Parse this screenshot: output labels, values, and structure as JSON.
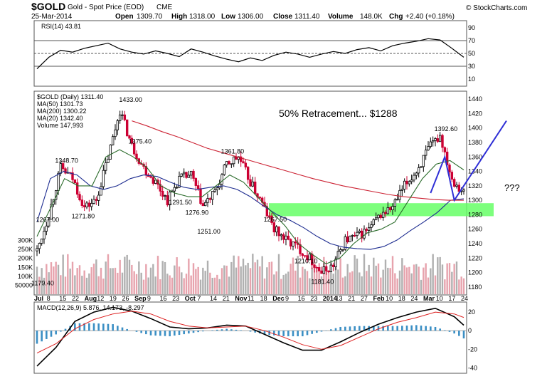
{
  "header": {
    "symbol": "$GOLD",
    "name": "Gold - Spot Price (EOD)",
    "exchange": "CME",
    "date": "25-Mar-2014",
    "open_label": "Open",
    "open": "1309.70",
    "high_label": "High",
    "high": "1318.00",
    "low_label": "Low",
    "low": "1306.00",
    "close_label": "Close",
    "close": "1311.40",
    "volume_label": "Volume",
    "volume": "148.0K",
    "chg_label": "Chg",
    "chg": "+2.40 (+0.18%)",
    "watermark": "© StockCharts.com"
  },
  "colors": {
    "up": "#000000",
    "down": "#cc0033",
    "ma50": "#1c2b8f",
    "ma200": "#cc2233",
    "ma20": "#2a6b2a",
    "band": "#66ff66",
    "annotation": "#2f2fd6",
    "macd_hist": "#3b8fc4"
  },
  "legend": {
    "price": "$GOLD (Daily) 1311.40",
    "ma50": "MA(50) 1301.73",
    "ma200": "MA(200) 1300.22",
    "ma20": "MA(20) 1342.40",
    "volume": "Volume 147,993"
  },
  "annotation": {
    "retracement": "50% Retracement... $1288",
    "question": "???"
  },
  "chart_data": [
    {
      "type": "line",
      "panel": "RSI",
      "title": "RSI(14) 43.81",
      "ylim": [
        0,
        100
      ],
      "y_ticks": [
        "90",
        "70",
        "50",
        "30",
        "10"
      ],
      "reference_lines": [
        70,
        50,
        30
      ],
      "x": [
        0,
        5,
        10,
        15,
        20,
        25,
        30,
        35,
        40,
        45,
        50,
        55,
        60,
        65,
        70,
        75,
        80,
        85,
        90,
        95,
        100,
        105,
        110,
        115,
        120,
        125,
        130,
        135,
        140,
        145,
        150,
        155,
        160,
        165,
        170,
        175,
        180
      ],
      "values": [
        26,
        44,
        55,
        52,
        58,
        62,
        66,
        57,
        52,
        49,
        54,
        50,
        45,
        57,
        52,
        46,
        41,
        37,
        43,
        39,
        47,
        52,
        49,
        44,
        49,
        53,
        50,
        56,
        59,
        54,
        62,
        66,
        69,
        73,
        71,
        58,
        44
      ]
    },
    {
      "type": "candlestick",
      "panel": "Price",
      "title": "$GOLD (Daily) 1311.40",
      "ylim": [
        1170,
        1450
      ],
      "y_ticks": [
        "1440",
        "1420",
        "1400",
        "1380",
        "1360",
        "1340",
        "1320",
        "1300",
        "1280",
        "1260",
        "1240",
        "1220",
        "1200",
        "1180"
      ],
      "x_tick_labels": [
        "Jul",
        "8",
        "15",
        "22",
        "Aug",
        "12",
        "19",
        "26",
        "Sep",
        "9",
        "16",
        "23",
        "Oct",
        "7",
        "14",
        "21",
        "Nov",
        "11",
        "18",
        "Dec",
        "9",
        "16",
        "23",
        "2014",
        "13",
        "21",
        "27",
        "Feb",
        "10",
        "18",
        "24",
        "Mar",
        "10",
        "17",
        "24"
      ],
      "price_path": [
        1230,
        1280,
        1345,
        1330,
        1290,
        1300,
        1360,
        1425,
        1375,
        1345,
        1325,
        1300,
        1330,
        1335,
        1292,
        1310,
        1350,
        1360,
        1325,
        1295,
        1260,
        1245,
        1235,
        1220,
        1200,
        1210,
        1245,
        1250,
        1260,
        1280,
        1290,
        1320,
        1340,
        1370,
        1390,
        1330,
        1311
      ],
      "price_x_step": 5,
      "point_labels": [
        {
          "x": 0,
          "y": 1179.4,
          "text": "1179.40"
        },
        {
          "x": 2,
          "y": 1267.0,
          "text": "1267.00"
        },
        {
          "x": 10,
          "y": 1348.7,
          "text": "1348.70"
        },
        {
          "x": 17,
          "y": 1271.8,
          "text": "1271.80"
        },
        {
          "x": 37,
          "y": 1433.0,
          "text": "1433.00"
        },
        {
          "x": 41,
          "y": 1375.4,
          "text": "1375.40"
        },
        {
          "x": 58,
          "y": 1291.5,
          "text": "1291.50"
        },
        {
          "x": 65,
          "y": 1276.9,
          "text": "1276.90"
        },
        {
          "x": 70,
          "y": 1251.0,
          "text": "1251.00"
        },
        {
          "x": 80,
          "y": 1361.8,
          "text": "1361.80"
        },
        {
          "x": 98,
          "y": 1267.5,
          "text": "1267.50"
        },
        {
          "x": 111,
          "y": 1210.1,
          "text": "1210.10"
        },
        {
          "x": 118,
          "y": 1181.4,
          "text": "1181.40"
        },
        {
          "x": 170,
          "y": 1392.6,
          "text": "1392.60"
        }
      ],
      "band": [
        1278,
        1296
      ],
      "series": [
        {
          "name": "MA(50)",
          "values": [
            1270,
            1330,
            1340,
            1335,
            1320,
            1315,
            1320,
            1330,
            1335,
            1333,
            1325,
            1318,
            1315,
            1318,
            1320,
            1315,
            1305,
            1292,
            1280,
            1272,
            1262,
            1250,
            1240,
            1235,
            1233,
            1232,
            1236,
            1245,
            1258,
            1270,
            1283,
            1300,
            1302
          ]
        },
        {
          "name": "MA(200)",
          "values": [
            1410,
            1403,
            1395,
            1388,
            1380,
            1372,
            1366,
            1360,
            1354,
            1348,
            1342,
            1336,
            1330,
            1325,
            1320,
            1316,
            1312,
            1308,
            1305,
            1303,
            1301,
            1300,
            1300
          ]
        },
        {
          "name": "MA(20)",
          "values": [
            1250,
            1290,
            1330,
            1320,
            1320,
            1360,
            1370,
            1360,
            1345,
            1320,
            1310,
            1305,
            1305,
            1320,
            1335,
            1325,
            1305,
            1285,
            1265,
            1240,
            1225,
            1212,
            1220,
            1240,
            1255,
            1260,
            1270,
            1300,
            1330,
            1350,
            1355,
            1342
          ]
        }
      ],
      "projection": {
        "name": "projection",
        "x": [
          166,
          172,
          176,
          198
        ],
        "y": [
          1310,
          1360,
          1300,
          1410
        ]
      }
    },
    {
      "type": "bar",
      "panel": "Volume",
      "title": "Volume 147,993",
      "y_ticks": [
        "300K",
        "250K",
        "200K",
        "150K",
        "100K",
        "50000"
      ],
      "ylim": [
        0,
        330000
      ]
    },
    {
      "type": "line",
      "panel": "MACD",
      "title": "MACD(12,26,9) 5.876, 14.173, -8.297",
      "ylim": [
        -45,
        30
      ],
      "y_ticks": [
        "20",
        "0",
        "-20",
        "-40"
      ],
      "x": [
        0,
        8,
        16,
        24,
        32,
        40,
        48,
        56,
        64,
        72,
        80,
        88,
        96,
        104,
        112,
        120,
        128,
        136,
        144,
        152,
        160,
        168,
        176,
        180
      ],
      "series": [
        {
          "name": "MACD",
          "values": [
            -38,
            -18,
            10,
            20,
            25,
            21,
            13,
            4,
            2,
            3,
            6,
            5,
            -4,
            -13,
            -21,
            -21,
            -12,
            -2,
            7,
            14,
            20,
            24,
            15,
            5.9
          ]
        },
        {
          "name": "Signal",
          "values": [
            -24,
            -14,
            2,
            12,
            18,
            21,
            18,
            10,
            5,
            3,
            4,
            5,
            0,
            -7,
            -15,
            -20,
            -16,
            -7,
            2,
            9,
            14,
            20,
            18,
            14.2
          ]
        }
      ]
    }
  ]
}
